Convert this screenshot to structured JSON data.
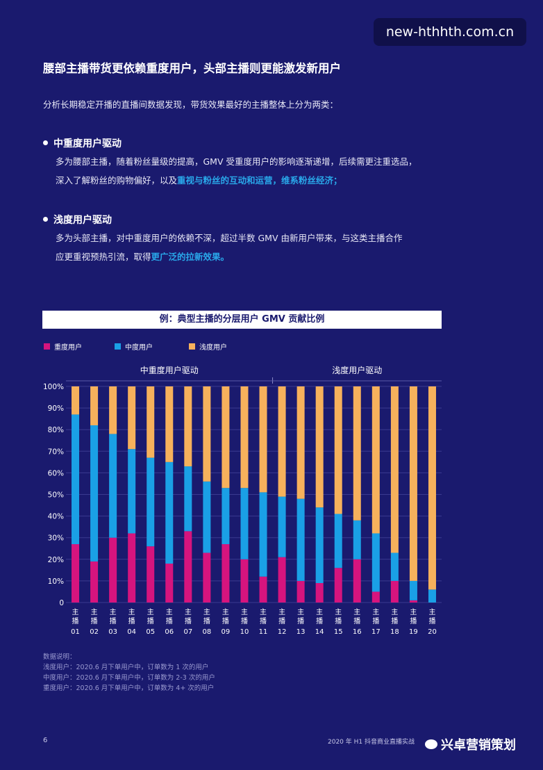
{
  "watermark": "new-hthhth.com.cn",
  "headline": "腰部主播带货更依赖重度用户，头部主播则更能激发新用户",
  "intro": "分析长期稳定开播的直播间数据发现，带货效果最好的主播整体上分为两类：",
  "section1": {
    "title": "中重度用户驱动",
    "line1": "多为腰部主播，随着粉丝量级的提高，GMV 受重度用户的影响逐渐递增，后续需更注重选品，",
    "line2_prefix": "深入了解粉丝的购物偏好，以及",
    "line2_highlight": "重视与粉丝的互动和运营，维系粉丝经济；"
  },
  "section2": {
    "title": "浅度用户驱动",
    "line1": "多为头部主播，对中重度用户的依赖不深，超过半数 GMV 由新用户带来，与这类主播合作",
    "line2_prefix": "应更重视预热引流，取得",
    "line2_highlight": "更广泛的拉新效果。"
  },
  "chart_title": "例：典型主播的分层用户 GMV 贡献比例",
  "chart_data": {
    "type": "bar",
    "stacked": true,
    "legend_position": "top-left",
    "groups": [
      {
        "label": "中重度用户驱动",
        "from": 0,
        "to": 10
      },
      {
        "label": "浅度用户驱动",
        "from": 11,
        "to": 19
      }
    ],
    "categories": [
      "主播01",
      "主播02",
      "主播03",
      "主播04",
      "主播05",
      "主播06",
      "主播07",
      "主播08",
      "主播09",
      "主播10",
      "主播11",
      "主播12",
      "主播13",
      "主播14",
      "主播15",
      "主播16",
      "主播17",
      "主播18",
      "主播19",
      "主播20"
    ],
    "category_top": "主播",
    "category_nums": [
      "01",
      "02",
      "03",
      "04",
      "05",
      "06",
      "07",
      "08",
      "09",
      "10",
      "11",
      "12",
      "13",
      "14",
      "15",
      "16",
      "17",
      "18",
      "19",
      "20"
    ],
    "yticks": [
      "0",
      "10%",
      "20%",
      "30%",
      "40%",
      "50%",
      "60%",
      "70%",
      "80%",
      "90%",
      "100%"
    ],
    "ylim": [
      0,
      100
    ],
    "series": [
      {
        "name": "重度用户",
        "color": "#d6147e",
        "values": [
          27,
          19,
          30,
          32,
          26,
          18,
          33,
          23,
          27,
          20,
          12,
          21,
          10,
          9,
          16,
          20,
          5,
          10,
          1,
          0
        ]
      },
      {
        "name": "中度用户",
        "color": "#1aa0e6",
        "values": [
          60,
          63,
          48,
          39,
          41,
          47,
          30,
          33,
          26,
          33,
          39,
          28,
          38,
          35,
          25,
          18,
          27,
          13,
          9,
          6
        ]
      },
      {
        "name": "浅度用户",
        "color": "#f6b15c",
        "values": [
          13,
          18,
          22,
          29,
          33,
          35,
          37,
          44,
          47,
          47,
          49,
          51,
          52,
          56,
          59,
          62,
          68,
          77,
          90,
          94
        ]
      }
    ]
  },
  "notes": {
    "title": "数据说明：",
    "lines": [
      "浅度用户：2020.6 月下单用户中，订单数为 1 次的用户",
      "中度用户：2020.6 月下单用户中，订单数为 2-3 次的用户",
      "重度用户：2020.6 月下单用户中，订单数为 4+ 次的用户"
    ]
  },
  "page_number": "6",
  "footer_text": "2020 年 H1 抖音商业直播实战",
  "brand": "兴卓营销策划"
}
